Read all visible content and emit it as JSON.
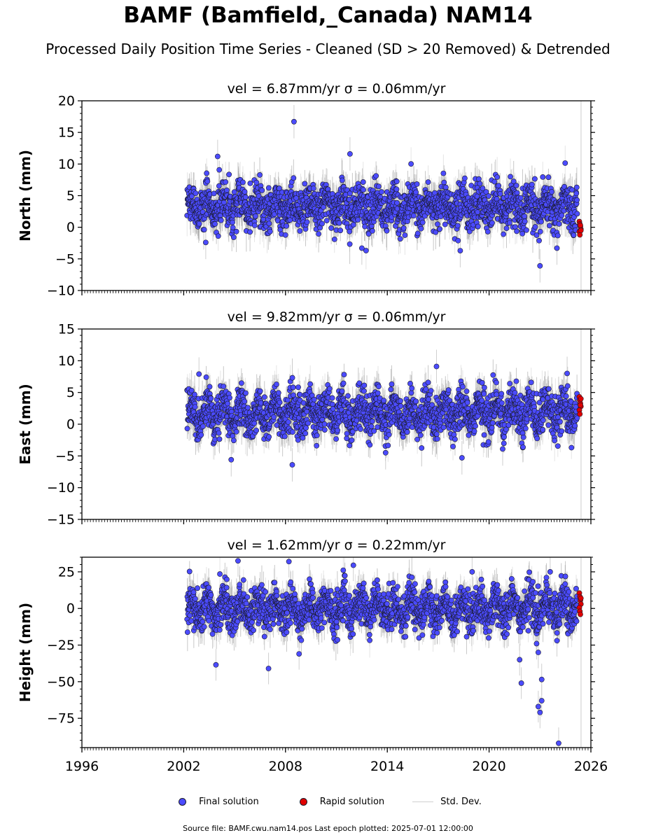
{
  "title": "BAMF (Bamfield,_Canada) NAM14",
  "subtitle": "Processed Daily Position Time Series - Cleaned (SD > 20 Removed) & Detrended",
  "legend": {
    "final": "Final solution",
    "rapid": "Rapid solution",
    "std": "Std. Dev."
  },
  "footer": "Source file: BAMF.cwu.nam14.pos  Last epoch plotted: 2025-07-01 12:00:00",
  "colors": {
    "final": "#4b4bff",
    "rapid": "#e00000",
    "errorbar": "#bbbbbb",
    "edge": "#1a1a2a"
  },
  "chart_data": [
    {
      "type": "scatter",
      "title": "vel = 6.87mm/yr   σ = 0.06mm/yr",
      "ylabel": "North (mm)",
      "xlim": [
        1996,
        2026
      ],
      "ylim": [
        -10,
        20
      ],
      "yticks": [
        -10,
        -5,
        0,
        5,
        10,
        15,
        20
      ],
      "ytick_labels": [
        "−10",
        "−5",
        "0",
        "5",
        "10",
        "15",
        "20"
      ],
      "xticks": [
        1996,
        2002,
        2008,
        2014,
        2020,
        2026
      ],
      "xtick_labels": [],
      "data_start": 2002.2,
      "data_end": 2025.5,
      "rapid_start": 2025.2,
      "series_trend": {
        "mean": 3.2,
        "spread": 2.2,
        "seasonal_amp": 1.2
      },
      "outliers": [
        {
          "x": 2008.5,
          "y": 16.7
        },
        {
          "x": 2011.8,
          "y": 11.6
        },
        {
          "x": 2004.0,
          "y": 11.2
        },
        {
          "x": 2018.3,
          "y": -3.7
        },
        {
          "x": 2023.0,
          "y": -6.1
        },
        {
          "x": 2024.0,
          "y": -3.3
        },
        {
          "x": 2003.3,
          "y": -2.4
        },
        {
          "x": 2012.5,
          "y": -3.3
        }
      ],
      "rapid_points": [
        0.9,
        0.5,
        0.1,
        -0.3,
        -0.7,
        -1.2,
        0.3,
        -0.5
      ]
    },
    {
      "type": "scatter",
      "title": "vel = 9.82mm/yr   σ = 0.06mm/yr",
      "ylabel": "East (mm)",
      "xlim": [
        1996,
        2026
      ],
      "ylim": [
        -15,
        15
      ],
      "yticks": [
        -15,
        -10,
        -5,
        0,
        5,
        10,
        15
      ],
      "ytick_labels": [
        "−15",
        "−10",
        "−5",
        "0",
        "5",
        "10",
        "15"
      ],
      "xticks": [
        1996,
        2002,
        2008,
        2014,
        2020,
        2026
      ],
      "xtick_labels": [],
      "data_start": 2002.2,
      "data_end": 2025.5,
      "rapid_start": 2025.2,
      "series_trend": {
        "mean": 1.8,
        "spread": 2.2,
        "seasonal_amp": 1.5
      },
      "outliers": [
        {
          "x": 2008.4,
          "y": -6.4
        },
        {
          "x": 2004.8,
          "y": -5.6
        },
        {
          "x": 2013.9,
          "y": -4.5
        },
        {
          "x": 2018.4,
          "y": -5.3
        },
        {
          "x": 2020.8,
          "y": -3.9
        },
        {
          "x": 2016.9,
          "y": 9.1
        },
        {
          "x": 2024.6,
          "y": 8.0
        },
        {
          "x": 2002.9,
          "y": 7.9
        }
      ],
      "rapid_points": [
        4.3,
        3.8,
        3.3,
        2.8,
        2.2,
        1.6,
        3.0,
        4.0
      ]
    },
    {
      "type": "scatter",
      "title": "vel = 1.62mm/yr   σ = 0.22mm/yr",
      "ylabel": "Height (mm)",
      "xlim": [
        1996,
        2026
      ],
      "ylim": [
        -95,
        35
      ],
      "yticks": [
        -75,
        -50,
        -25,
        0,
        25
      ],
      "ytick_labels": [
        "−75",
        "−50",
        "−25",
        "0",
        "25"
      ],
      "xticks": [
        1996,
        2002,
        2008,
        2014,
        2020,
        2026
      ],
      "xtick_labels": [
        "1996",
        "2002",
        "2008",
        "2014",
        "2020",
        "2026"
      ],
      "data_start": 2002.2,
      "data_end": 2025.5,
      "rapid_start": 2025.2,
      "series_trend": {
        "mean": 0,
        "spread": 9,
        "seasonal_amp": 6
      },
      "outliers": [
        {
          "x": 2003.9,
          "y": -38.5
        },
        {
          "x": 2007.0,
          "y": -41.0
        },
        {
          "x": 2008.8,
          "y": -31.0
        },
        {
          "x": 2021.9,
          "y": -51.0
        },
        {
          "x": 2021.8,
          "y": -35.0
        },
        {
          "x": 2022.9,
          "y": -30.0
        },
        {
          "x": 2022.8,
          "y": -24.0
        },
        {
          "x": 2023.1,
          "y": -48.5
        },
        {
          "x": 2023.1,
          "y": -63.0
        },
        {
          "x": 2022.9,
          "y": -67.0
        },
        {
          "x": 2023.0,
          "y": -71.0
        },
        {
          "x": 2024.1,
          "y": -92.0
        },
        {
          "x": 2024.0,
          "y": -22.0
        },
        {
          "x": 2005.2,
          "y": 32.5
        },
        {
          "x": 2008.2,
          "y": 32.0
        },
        {
          "x": 2012.0,
          "y": 29.5
        },
        {
          "x": 2019.0,
          "y": 25.0
        },
        {
          "x": 2023.6,
          "y": 25.0
        }
      ],
      "rapid_points": [
        10.5,
        8.0,
        5.5,
        3.0,
        0.5,
        -2.0,
        -4.0,
        7.0
      ]
    }
  ]
}
